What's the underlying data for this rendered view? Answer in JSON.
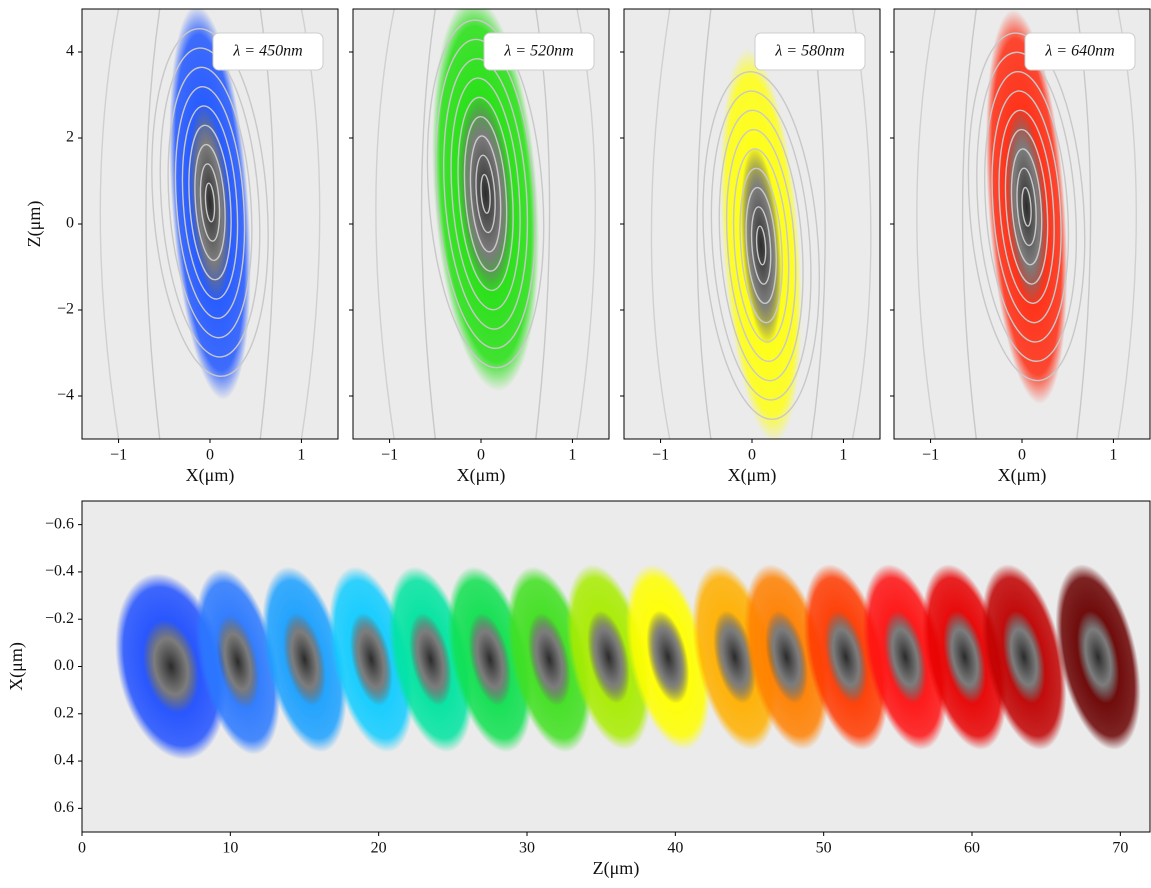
{
  "chart_data": [
    {
      "type": "heatmap",
      "annotation": "λ = 450nm",
      "xlabel": "X(μm)",
      "ylabel": "Z(μm)",
      "color": "#1f55ff",
      "spot_x": 0.0,
      "spot_z": 0.5,
      "xlim": [
        -1.4,
        1.4
      ],
      "ylim": [
        -5,
        5
      ],
      "xticks": [
        {
          "value": -1,
          "label": "−1"
        },
        0,
        1
      ],
      "yticks": [
        {
          "value": -4,
          "label": "−4"
        },
        {
          "value": -2,
          "label": "−2"
        },
        0,
        2,
        4
      ]
    },
    {
      "type": "heatmap",
      "annotation": "λ = 520nm",
      "xlabel": "X(μm)",
      "color": "#22e010",
      "spot_x": 0.05,
      "spot_z": 0.7,
      "xlim": [
        -1.4,
        1.4
      ],
      "ylim": [
        -5,
        5
      ],
      "xticks": [
        {
          "value": -1,
          "label": "−1"
        },
        0,
        1
      ]
    },
    {
      "type": "heatmap",
      "annotation": "λ = 580nm",
      "xlabel": "X(μm)",
      "color": "#ffff10",
      "spot_x": 0.1,
      "spot_z": -0.5,
      "xlim": [
        -1.4,
        1.4
      ],
      "ylim": [
        -5,
        5
      ],
      "xticks": [
        {
          "value": -1,
          "label": "−1"
        },
        0,
        1
      ]
    },
    {
      "type": "heatmap",
      "annotation": "λ = 640nm",
      "xlabel": "X(μm)",
      "color": "#ff2a10",
      "spot_x": 0.05,
      "spot_z": 0.4,
      "xlim": [
        -1.4,
        1.4
      ],
      "ylim": [
        -5,
        5
      ],
      "xticks": [
        {
          "value": -1,
          "label": "−1"
        },
        0,
        1
      ]
    },
    {
      "type": "spots",
      "xlabel": "Z(μm)",
      "ylabel": "X(μm)",
      "xlim": [
        0,
        72
      ],
      "ylim": [
        0.7,
        -0.7
      ],
      "xticks": [
        0,
        10,
        20,
        30,
        40,
        50,
        60,
        70
      ],
      "yticks": [
        {
          "value": -0.6,
          "label": "−0.6"
        },
        {
          "value": -0.4,
          "label": "−0.4"
        },
        {
          "value": -0.2,
          "label": "−0.2"
        },
        {
          "value": 0,
          "label": "0.0"
        },
        0.2,
        0.4,
        0.6
      ],
      "spots": [
        {
          "z": 6,
          "x": 0.0,
          "color": "#1f4fff"
        },
        {
          "z": 10.5,
          "x": -0.02,
          "color": "#2a78ff"
        },
        {
          "z": 15,
          "x": -0.03,
          "color": "#1aa0ff"
        },
        {
          "z": 19.5,
          "x": -0.03,
          "color": "#10ccff"
        },
        {
          "z": 23.5,
          "x": -0.03,
          "color": "#00e4a0"
        },
        {
          "z": 27.5,
          "x": -0.03,
          "color": "#10e050"
        },
        {
          "z": 31.5,
          "x": -0.03,
          "color": "#40e020"
        },
        {
          "z": 35.5,
          "x": -0.04,
          "color": "#a8ec00"
        },
        {
          "z": 39.5,
          "x": -0.04,
          "color": "#ffff00"
        },
        {
          "z": 44,
          "x": -0.04,
          "color": "#ffb000"
        },
        {
          "z": 47.5,
          "x": -0.04,
          "color": "#ff8000"
        },
        {
          "z": 51.5,
          "x": -0.04,
          "color": "#ff3a00"
        },
        {
          "z": 55.5,
          "x": -0.04,
          "color": "#ff1010"
        },
        {
          "z": 59.5,
          "x": -0.04,
          "color": "#e80000"
        },
        {
          "z": 63.5,
          "x": -0.04,
          "color": "#c00000"
        },
        {
          "z": 68.5,
          "x": -0.04,
          "color": "#6a0000"
        }
      ]
    }
  ]
}
